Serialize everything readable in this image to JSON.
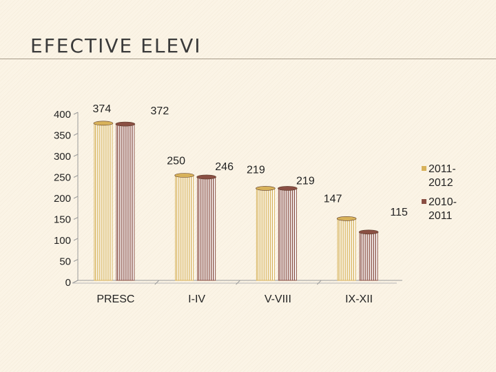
{
  "slide": {
    "title": "EFECTIVE ELEVI"
  },
  "chart_data": {
    "type": "bar",
    "categories": [
      "PRESC",
      "I-IV",
      "V-VIII",
      "IX-XII"
    ],
    "series": [
      {
        "name": "2011-2012",
        "values": [
          374,
          250,
          219,
          147
        ],
        "color": "#d8b25a"
      },
      {
        "name": "2010-2011",
        "values": [
          372,
          246,
          219,
          115
        ],
        "color": "#8a4f43"
      }
    ],
    "ylim": [
      0,
      400
    ],
    "yticks": [
      0,
      50,
      100,
      150,
      200,
      250,
      300,
      350,
      400
    ],
    "legend": "right",
    "grid": false,
    "xlabel": "",
    "ylabel": ""
  },
  "legend": {
    "items": [
      {
        "line1": "2011-",
        "line2": "2012"
      },
      {
        "line1": "2010-",
        "line2": "2011"
      }
    ]
  }
}
